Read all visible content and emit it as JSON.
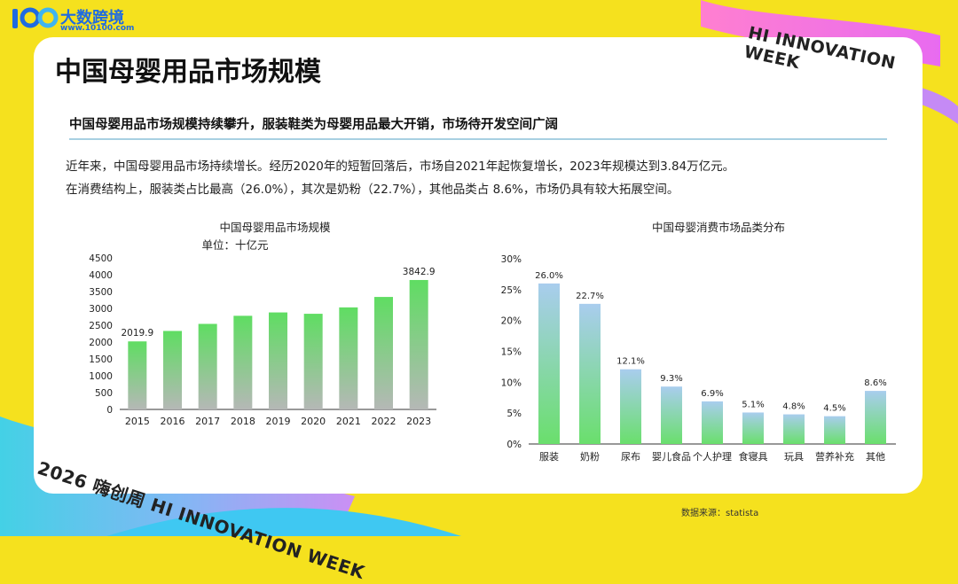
{
  "brand": {
    "name": "大数跨境",
    "url": "www.10100.com"
  },
  "banner": {
    "top": "HI INNOVATION WEEK",
    "bottom": "2026 嗨创周 HI INNOVATION WEEK"
  },
  "page": {
    "title": "中国母婴用品市场规模",
    "subtitle": "中国母婴用品市场规模持续攀升，服装鞋类为母婴用品最大开销，市场待开发空间广阔",
    "para1": "近年来，中国母婴用品市场持续增长。经历2020年的短暂回落后，市场自2021年起恢复增长，2023年规模达到3.84万亿元。",
    "para2": "在消费结构上，服装类占比最高（26.0%），其次是奶粉（22.7%），其他品类占 8.6%，市场仍具有较大拓展空间。",
    "source": "数据来源：statista"
  },
  "colors": {
    "bar_top_green": "#5fdd62",
    "bar_bottom_gray": "#b5b8b6",
    "bar_top_blue": "#a9cdee",
    "bar_bottom_green": "#6adf6c",
    "background": "#f5e11e"
  },
  "chart_data": [
    {
      "type": "bar",
      "title": "中国母婴用品市场规模",
      "subtitle": "单位：十亿元",
      "categories": [
        "2015",
        "2016",
        "2017",
        "2018",
        "2019",
        "2020",
        "2021",
        "2022",
        "2023"
      ],
      "values": [
        2019.9,
        2330,
        2540,
        2780,
        2880,
        2840,
        3030,
        3340,
        3842.9
      ],
      "data_labels": {
        "0": "2019.9",
        "8": "3842.9"
      },
      "ylim": [
        0,
        4500
      ],
      "yticks": [
        "0",
        "500",
        "1000",
        "1500",
        "2000",
        "2500",
        "3000",
        "3500",
        "4000",
        "4500"
      ],
      "grid": false
    },
    {
      "type": "bar",
      "title": "中国母婴消费市场品类分布",
      "categories": [
        "服装",
        "奶粉",
        "尿布",
        "婴儿食品",
        "个人护理",
        "食寝具",
        "玩具",
        "营养补充",
        "其他"
      ],
      "values": [
        26.0,
        22.7,
        12.1,
        9.3,
        6.9,
        5.1,
        4.8,
        4.5,
        8.6
      ],
      "data_labels": [
        "26.0%",
        "22.7%",
        "12.1%",
        "9.3%",
        "6.9%",
        "5.1%",
        "4.8%",
        "4.5%",
        "8.6%"
      ],
      "ylim": [
        0,
        30
      ],
      "yticks": [
        "0%",
        "5%",
        "10%",
        "15%",
        "20%",
        "25%",
        "30%"
      ],
      "grid": false
    }
  ]
}
